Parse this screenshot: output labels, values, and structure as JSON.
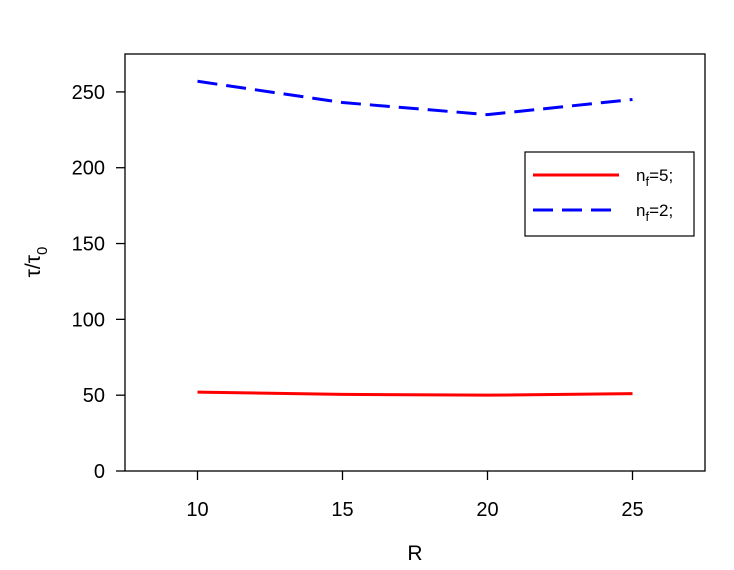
{
  "chart_data": {
    "type": "line",
    "x": [
      10,
      15,
      20,
      25
    ],
    "series": [
      {
        "name": "n_f=5;",
        "name_main": "n",
        "name_sub": "f",
        "name_rest": "=5;",
        "values": [
          52,
          50.5,
          50,
          51
        ],
        "color": "#ff0000",
        "style": "solid"
      },
      {
        "name": "n_f=2;",
        "name_main": "n",
        "name_sub": "f",
        "name_rest": "=2;",
        "values": [
          257,
          243,
          235,
          245
        ],
        "color": "#0000ff",
        "style": "dashed"
      }
    ],
    "xlabel": "R",
    "ylabel": {
      "main": "τ/τ",
      "sub": "0"
    },
    "xlim": [
      7.5,
      27.5
    ],
    "ylim": [
      0,
      275
    ],
    "xticks": [
      "10",
      "15",
      "20",
      "25"
    ],
    "yticks": [
      "0",
      "50",
      "100",
      "150",
      "200",
      "250"
    ],
    "legend_position": "upper-right",
    "grid": false
  }
}
